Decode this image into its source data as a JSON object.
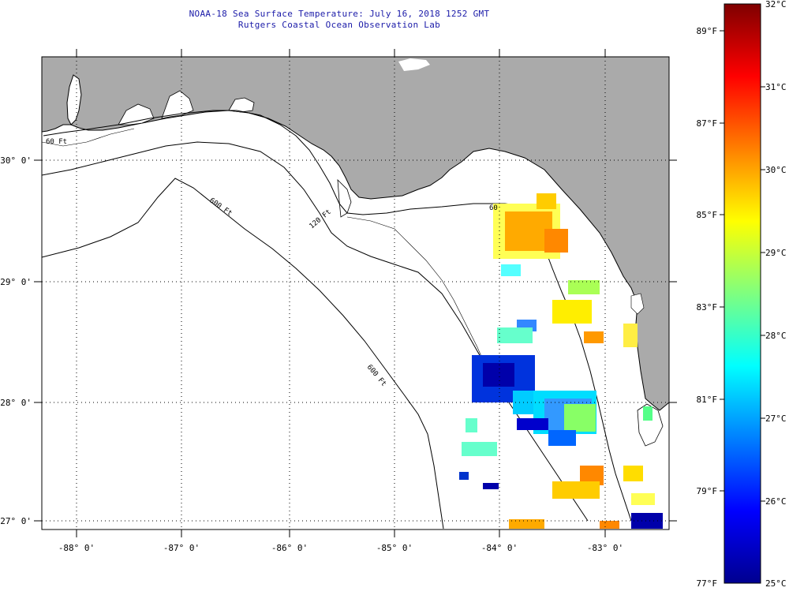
{
  "title": {
    "line1": "NOAA-18 Sea Surface Temperature:  July 16, 2018 1252 GMT",
    "line2": "Rutgers Coastal Ocean Observation Lab"
  },
  "map": {
    "lon_labels": [
      "-88° 0'",
      "-87° 0'",
      "-86° 0'",
      "-85° 0'",
      "-84° 0'",
      "-83° 0'"
    ],
    "lat_labels": [
      "30° 0'",
      "29° 0'",
      "28° 0'",
      "27° 0'"
    ],
    "contour_labels": [
      "60 Ft",
      "120 Ft",
      "600 Ft",
      "600 Ft",
      "60"
    ],
    "colors": {
      "land": "#aaaaaa",
      "ocean": "#ffffff",
      "frame": "#000000",
      "grid": "#000000"
    }
  },
  "colorbar": {
    "celsius_labels": [
      "32°C",
      "31°C",
      "30°C",
      "29°C",
      "28°C",
      "27°C",
      "26°C",
      "25°C"
    ],
    "fahrenheit_labels": [
      "89°F",
      "87°F",
      "85°F",
      "83°F",
      "81°F",
      "79°F",
      "77°F"
    ],
    "celsius_range": [
      25,
      32
    ],
    "fahrenheit_range": [
      77,
      89.6
    ]
  }
}
